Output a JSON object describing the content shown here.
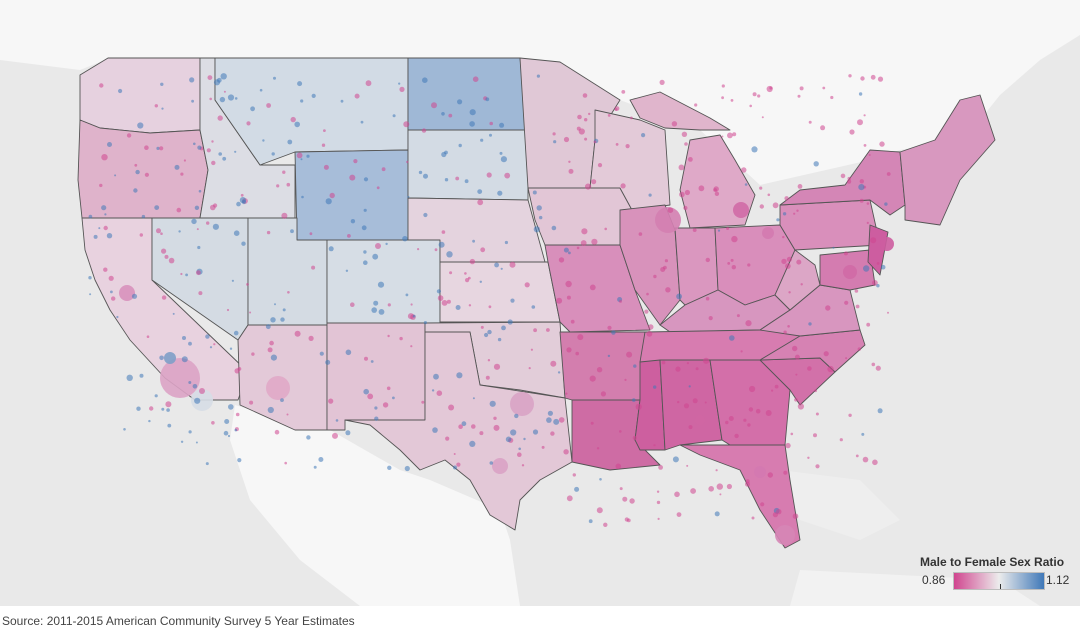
{
  "map": {
    "kind": "choropleth-bubble",
    "region": "Contiguous United States",
    "variable": "Male to Female Sex Ratio",
    "geography_levels": [
      "state",
      "county"
    ]
  },
  "legend": {
    "title": "Male to Female Sex Ratio",
    "min_label": "0.86",
    "max_label": "1.12",
    "min_value": 0.86,
    "max_value": 1.12,
    "color_low": "#d0458f",
    "color_mid": "#ececec",
    "color_high": "#3f78b8"
  },
  "colors": {
    "background": "#e9e9e9",
    "land_other": "#f7f7f7",
    "state_border": "#555555"
  },
  "source": "Source: 2011-2015 American Community Survey 5 Year Estimates"
}
